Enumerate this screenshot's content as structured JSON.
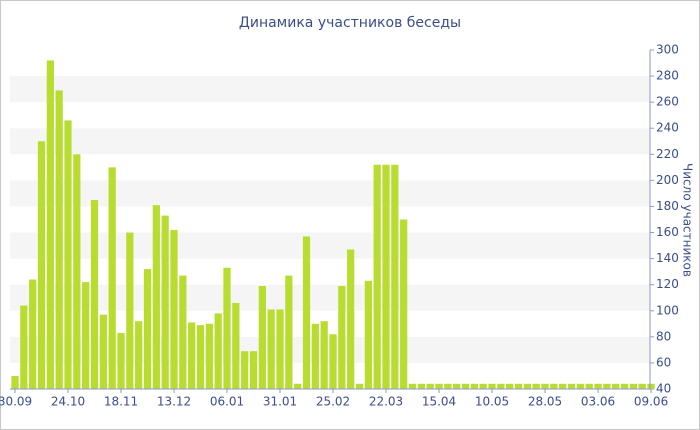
{
  "chart_data": {
    "type": "bar",
    "title": "Динамика участников беседы",
    "y_label": "Число участников",
    "categories": [
      "30.09",
      null,
      null,
      null,
      null,
      null,
      "24.10",
      null,
      null,
      null,
      null,
      null,
      "18.11",
      null,
      null,
      null,
      null,
      null,
      "13.12",
      null,
      null,
      null,
      null,
      null,
      "06.01",
      null,
      null,
      null,
      null,
      null,
      "31.01",
      null,
      null,
      null,
      null,
      null,
      "25.02",
      null,
      null,
      null,
      null,
      null,
      "22.03",
      null,
      null,
      null,
      null,
      null,
      "15.04",
      null,
      null,
      null,
      null,
      null,
      "10.05",
      null,
      null,
      null,
      null,
      null,
      "28.05",
      null,
      null,
      null,
      null,
      null,
      "03.06",
      null,
      null,
      null,
      null,
      null,
      "09.06"
    ],
    "values": [
      50,
      104,
      124,
      230,
      292,
      269,
      246,
      220,
      122,
      185,
      97,
      210,
      83,
      160,
      92,
      132,
      181,
      173,
      162,
      127,
      91,
      89,
      90,
      98,
      133,
      106,
      69,
      69,
      119,
      101,
      101,
      127,
      44,
      157,
      90,
      92,
      82,
      119,
      147,
      44,
      123,
      212,
      212,
      212,
      170,
      44,
      44,
      44,
      44,
      44,
      44,
      44,
      44,
      44,
      44,
      44,
      44,
      44,
      44,
      44,
      44,
      44,
      44,
      44,
      44,
      44,
      44,
      44,
      44,
      44,
      44,
      44,
      44
    ],
    "color": "#b8dc2f",
    "ylim": [
      40,
      300
    ],
    "yticks": [
      40,
      60,
      80,
      100,
      120,
      140,
      160,
      180,
      200,
      220,
      240,
      260,
      280,
      300
    ],
    "grid": true
  }
}
